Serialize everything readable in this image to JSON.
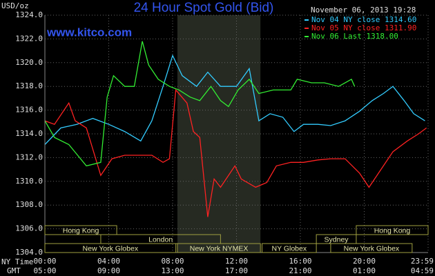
{
  "chart_data": {
    "type": "line",
    "title": "24 Hour Spot Gold (Bid)",
    "subtitle": "November 06, 2013 19:28",
    "annotation": "www.kitco.com",
    "ylabel": "USD/oz",
    "xlabel": "NY Time",
    "x2label": "GMT",
    "xlim": [
      0,
      24
    ],
    "ylim": [
      1304,
      1324
    ],
    "yticks": [
      {
        "value": 1304,
        "label": "1304.0"
      },
      {
        "value": 1306,
        "label": "1306.0"
      },
      {
        "value": 1308,
        "label": "1308.0"
      },
      {
        "value": 1310,
        "label": "1310.0"
      },
      {
        "value": 1312,
        "label": "1312.0"
      },
      {
        "value": 1314,
        "label": "1314.0"
      },
      {
        "value": 1316,
        "label": "1316.0"
      },
      {
        "value": 1318,
        "label": "1318.0"
      },
      {
        "value": 1320,
        "label": "1320.0"
      },
      {
        "value": 1322,
        "label": "1322.0"
      },
      {
        "value": 1324,
        "label": "1324.0"
      }
    ],
    "xticks": [
      {
        "value": 0,
        "label": "00:00"
      },
      {
        "value": 4,
        "label": "04:00"
      },
      {
        "value": 8,
        "label": "08:00"
      },
      {
        "value": 12,
        "label": "12:00"
      },
      {
        "value": 16,
        "label": "16:00"
      },
      {
        "value": 20,
        "label": "20:00"
      },
      {
        "value": 24,
        "label": "23:59"
      }
    ],
    "x2ticks": [
      {
        "value": 0,
        "label": "05:00"
      },
      {
        "value": 4,
        "label": "09:00"
      },
      {
        "value": 8,
        "label": "13:00"
      },
      {
        "value": 12,
        "label": "17:00"
      },
      {
        "value": 16,
        "label": "21:00"
      },
      {
        "value": 20,
        "label": "01:00"
      },
      {
        "value": 24,
        "label": "04:59"
      }
    ],
    "grid": true,
    "legend": "top-right",
    "series": [
      {
        "name": "Nov 04 NY close 1314.60",
        "color": "#33ccff",
        "x": [
          0,
          1.0,
          2.0,
          3.0,
          4.0,
          5.0,
          6.0,
          6.7,
          7.4,
          8.0,
          8.6,
          9.5,
          10.2,
          11.0,
          12.0,
          12.8,
          13.4,
          14.1,
          14.9,
          15.6,
          16.2,
          17.1,
          17.9,
          18.8,
          19.7,
          20.5,
          21.2,
          21.8,
          22.5,
          23.1,
          23.8
        ],
        "values": [
          1313.1,
          1314.5,
          1314.8,
          1315.3,
          1314.8,
          1314.2,
          1313.4,
          1315.1,
          1318.0,
          1320.6,
          1318.9,
          1318.0,
          1319.2,
          1318.0,
          1318.0,
          1319.5,
          1315.1,
          1315.7,
          1315.4,
          1314.2,
          1314.8,
          1314.8,
          1314.7,
          1315.1,
          1315.9,
          1316.8,
          1317.4,
          1318.0,
          1316.8,
          1315.7,
          1315.1
        ]
      },
      {
        "name": "Nov 05 NY close 1311.90",
        "color": "#ff2222",
        "x": [
          0,
          0.6,
          1.5,
          1.9,
          2.6,
          3.5,
          4.2,
          5.0,
          5.9,
          6.7,
          7.4,
          7.8,
          8.2,
          8.9,
          9.3,
          9.7,
          10.2,
          10.6,
          11.0,
          11.9,
          12.3,
          13.2,
          13.9,
          14.5,
          15.4,
          16.2,
          17.1,
          17.9,
          18.8,
          19.7,
          20.3,
          20.9,
          21.8,
          22.7,
          23.4,
          23.9
        ],
        "values": [
          1315.1,
          1314.8,
          1316.6,
          1315.1,
          1314.5,
          1310.5,
          1311.9,
          1312.2,
          1312.2,
          1312.2,
          1311.6,
          1311.9,
          1317.7,
          1316.6,
          1314.2,
          1313.7,
          1307.0,
          1310.2,
          1309.5,
          1311.3,
          1310.2,
          1309.5,
          1309.9,
          1311.3,
          1311.6,
          1311.6,
          1311.8,
          1311.9,
          1311.9,
          1310.7,
          1309.5,
          1310.7,
          1312.5,
          1313.4,
          1314.0,
          1314.5
        ]
      },
      {
        "name": "Nov 06 Last 1318.00",
        "color": "#33ee33",
        "x": [
          0,
          0.6,
          1.5,
          2.6,
          3.5,
          3.9,
          4.3,
          5.0,
          5.6,
          6.1,
          6.5,
          7.1,
          7.8,
          8.4,
          9.1,
          9.7,
          10.4,
          11.0,
          11.5,
          12.1,
          12.8,
          13.4,
          14.3,
          15.4,
          15.8,
          16.7,
          17.5,
          18.4,
          19.2,
          19.4
        ],
        "values": [
          1315.1,
          1313.7,
          1313.1,
          1311.3,
          1311.6,
          1317.1,
          1318.9,
          1318.0,
          1318.0,
          1321.8,
          1319.8,
          1318.6,
          1318.0,
          1317.7,
          1317.1,
          1316.8,
          1318.0,
          1316.8,
          1316.3,
          1317.7,
          1318.6,
          1317.4,
          1317.7,
          1317.7,
          1318.6,
          1318.3,
          1318.3,
          1318.0,
          1318.6,
          1318.0
        ]
      }
    ],
    "sessions": [
      [
        {
          "label": "Hong Kong",
          "start": 0,
          "end": 4.5
        },
        {
          "label": "Hong Kong",
          "start": 19.5,
          "end": 24
        }
      ],
      [
        {
          "label": "London",
          "start": 3.5,
          "end": 11.0
        },
        {
          "label": "Sydney",
          "start": 17.0,
          "end": 19.5
        }
      ],
      [
        {
          "label": "New York Globex",
          "start": 0,
          "end": 8.2
        },
        {
          "label": "New York NYMEX",
          "start": 8.3,
          "end": 13.5,
          "highlight": true
        },
        {
          "label": "NY Globex",
          "start": 13.6,
          "end": 17.0
        },
        {
          "label": "New York Globex",
          "start": 17.9,
          "end": 23.0
        }
      ]
    ]
  }
}
